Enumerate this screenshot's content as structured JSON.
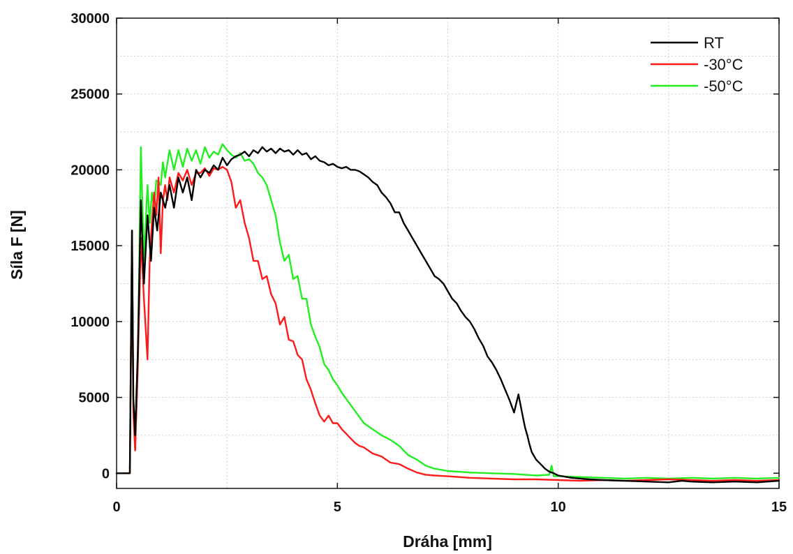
{
  "chart_data": {
    "type": "line",
    "title": "",
    "xlabel": "Dráha [mm]",
    "ylabel": "Síla F [N]",
    "xlim": [
      0,
      15
    ],
    "ylim": [
      -1000,
      30000
    ],
    "xticks": [
      0,
      5,
      10,
      15
    ],
    "yticks": [
      0,
      5000,
      10000,
      15000,
      20000,
      25000,
      30000
    ],
    "grid": true,
    "legend_position": "top-right",
    "series": [
      {
        "name": "RT",
        "color": "#000000",
        "x": [
          0,
          0.3,
          0.35,
          0.38,
          0.42,
          0.48,
          0.55,
          0.62,
          0.7,
          0.78,
          0.85,
          0.92,
          1.0,
          1.1,
          1.2,
          1.3,
          1.4,
          1.5,
          1.6,
          1.7,
          1.8,
          1.9,
          2.0,
          2.1,
          2.2,
          2.3,
          2.4,
          2.5,
          2.6,
          2.7,
          2.8,
          2.9,
          3.0,
          3.1,
          3.2,
          3.3,
          3.4,
          3.5,
          3.6,
          3.7,
          3.8,
          3.9,
          4.0,
          4.1,
          4.2,
          4.3,
          4.4,
          4.5,
          4.6,
          4.7,
          4.8,
          4.9,
          5.0,
          5.1,
          5.2,
          5.3,
          5.4,
          5.5,
          5.6,
          5.7,
          5.8,
          5.9,
          6.0,
          6.1,
          6.2,
          6.3,
          6.4,
          6.5,
          6.6,
          6.7,
          6.8,
          6.9,
          7.0,
          7.1,
          7.2,
          7.3,
          7.4,
          7.5,
          7.6,
          7.7,
          7.8,
          7.9,
          8.0,
          8.1,
          8.2,
          8.3,
          8.4,
          8.5,
          8.6,
          8.7,
          8.8,
          8.9,
          9.0,
          9.1,
          9.2,
          9.25,
          9.3,
          9.35,
          9.4,
          9.5,
          9.6,
          9.7,
          9.8,
          9.9,
          10.0,
          10.1,
          10.2,
          10.3,
          10.5,
          10.7,
          11.0,
          11.5,
          12.0,
          12.5,
          12.8,
          13.0,
          13.5,
          14.0,
          14.5,
          15.0
        ],
        "y": [
          0,
          0,
          16000,
          5000,
          2500,
          8000,
          18000,
          12500,
          17000,
          14000,
          17500,
          16000,
          18500,
          17500,
          19000,
          17500,
          19500,
          18500,
          19500,
          18000,
          20000,
          19500,
          20000,
          19800,
          20300,
          20000,
          20800,
          20300,
          20700,
          20900,
          21000,
          21200,
          20900,
          21300,
          21100,
          21500,
          21200,
          21400,
          21100,
          21400,
          21200,
          21300,
          21000,
          21300,
          21000,
          21100,
          20700,
          20900,
          20600,
          20500,
          20300,
          20400,
          20200,
          20100,
          20200,
          20000,
          20000,
          19900,
          19700,
          19500,
          19200,
          19000,
          18500,
          18200,
          17800,
          17200,
          17200,
          16500,
          16000,
          15500,
          15000,
          14500,
          14000,
          13500,
          13000,
          12800,
          12500,
          12000,
          11500,
          11200,
          10700,
          10300,
          10000,
          9500,
          8900,
          8400,
          7700,
          7300,
          6800,
          6200,
          5500,
          4800,
          4000,
          5200,
          3700,
          3000,
          2500,
          1900,
          1400,
          900,
          600,
          300,
          100,
          0,
          -150,
          -200,
          -250,
          -300,
          -350,
          -400,
          -450,
          -500,
          -550,
          -600,
          -500,
          -550,
          -600,
          -550,
          -600,
          -500
        ]
      },
      {
        "name": "-30°C",
        "color": "#ff1a1a",
        "x": [
          0,
          0.3,
          0.35,
          0.38,
          0.42,
          0.48,
          0.55,
          0.62,
          0.7,
          0.75,
          0.8,
          0.85,
          0.9,
          0.95,
          1.0,
          1.05,
          1.1,
          1.15,
          1.2,
          1.3,
          1.4,
          1.5,
          1.6,
          1.7,
          1.8,
          1.9,
          2.0,
          2.1,
          2.2,
          2.3,
          2.4,
          2.5,
          2.6,
          2.7,
          2.8,
          2.9,
          3.0,
          3.1,
          3.2,
          3.3,
          3.4,
          3.5,
          3.6,
          3.7,
          3.8,
          3.9,
          4.0,
          4.1,
          4.2,
          4.3,
          4.4,
          4.5,
          4.6,
          4.7,
          4.8,
          4.9,
          5.0,
          5.1,
          5.2,
          5.3,
          5.4,
          5.5,
          5.6,
          5.8,
          6.0,
          6.2,
          6.4,
          6.6,
          6.8,
          7.0,
          7.2,
          7.5,
          8.0,
          8.5,
          9.0,
          9.5,
          10.0,
          10.5,
          11.0,
          11.5,
          12.0,
          12.5,
          13.0,
          13.5,
          14.0,
          14.5,
          15.0
        ],
        "y": [
          0,
          0,
          16000,
          4000,
          1500,
          7000,
          15500,
          11500,
          7500,
          14000,
          16500,
          18500,
          17000,
          19500,
          14500,
          18000,
          19000,
          18000,
          19500,
          18500,
          19800,
          19300,
          20000,
          19000,
          19800,
          19800,
          20100,
          19600,
          20100,
          20000,
          20200,
          20000,
          19200,
          17500,
          18000,
          16500,
          15500,
          14000,
          14000,
          12800,
          13000,
          11800,
          11200,
          9800,
          10300,
          8800,
          8700,
          7800,
          7500,
          6200,
          5500,
          4600,
          3800,
          3400,
          3800,
          3300,
          3300,
          2900,
          2600,
          2300,
          2000,
          1800,
          1700,
          1300,
          1100,
          700,
          600,
          300,
          50,
          -100,
          -150,
          -200,
          -300,
          -350,
          -400,
          -400,
          -450,
          -500,
          -450,
          -500,
          -450,
          -400,
          -450,
          -500,
          -450,
          -500,
          -450
        ]
      },
      {
        "name": "-50°C",
        "color": "#22ee22",
        "x": [
          0,
          0.3,
          0.35,
          0.38,
          0.42,
          0.48,
          0.55,
          0.62,
          0.7,
          0.75,
          0.8,
          0.85,
          0.9,
          0.95,
          1.0,
          1.05,
          1.1,
          1.2,
          1.3,
          1.4,
          1.5,
          1.6,
          1.7,
          1.8,
          1.9,
          2.0,
          2.1,
          2.2,
          2.3,
          2.4,
          2.5,
          2.6,
          2.7,
          2.8,
          2.9,
          3.0,
          3.1,
          3.2,
          3.3,
          3.4,
          3.5,
          3.6,
          3.7,
          3.8,
          3.9,
          4.0,
          4.1,
          4.2,
          4.3,
          4.4,
          4.5,
          4.6,
          4.7,
          4.8,
          4.9,
          5.0,
          5.1,
          5.2,
          5.3,
          5.4,
          5.5,
          5.6,
          5.8,
          6.0,
          6.2,
          6.4,
          6.6,
          6.8,
          7.0,
          7.2,
          7.5,
          8.0,
          8.5,
          9.0,
          9.5,
          9.8,
          9.85,
          9.9,
          10.0,
          10.5,
          11.0,
          11.5,
          12.0,
          12.5,
          13.0,
          13.5,
          14.0,
          14.5,
          15.0
        ],
        "y": [
          0,
          0,
          16000,
          5000,
          1500,
          7000,
          21500,
          14000,
          19000,
          16500,
          18500,
          17500,
          19300,
          19200,
          19000,
          20500,
          19500,
          21300,
          20000,
          21300,
          20200,
          21400,
          20600,
          21300,
          20400,
          21500,
          20800,
          21200,
          21000,
          21700,
          21300,
          21000,
          20800,
          21100,
          20600,
          20700,
          20400,
          19800,
          19500,
          19000,
          18000,
          17000,
          15200,
          14000,
          14400,
          12800,
          13000,
          11500,
          11500,
          9800,
          9000,
          8300,
          7200,
          6800,
          6200,
          5800,
          5300,
          4900,
          4500,
          4100,
          3700,
          3300,
          2900,
          2500,
          2200,
          1800,
          1200,
          900,
          500,
          300,
          150,
          50,
          0,
          -50,
          -150,
          -100,
          500,
          -200,
          -200,
          -250,
          -300,
          -350,
          -300,
          -350,
          -300,
          -350,
          -300,
          -350,
          -300
        ]
      }
    ]
  }
}
